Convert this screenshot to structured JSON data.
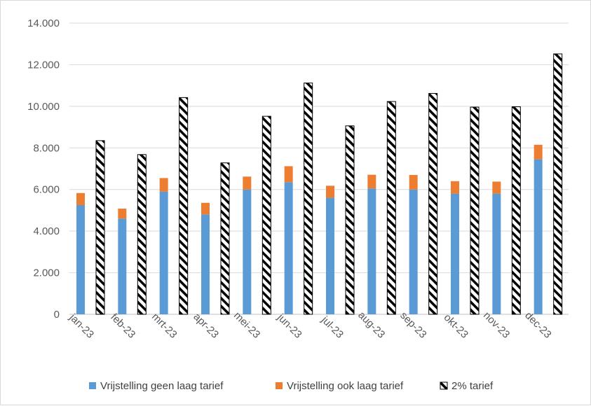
{
  "chart_data": {
    "type": "bar",
    "categories": [
      "jan-23",
      "feb-23",
      "mrt-23",
      "apr-23",
      "mei-23",
      "jun-23",
      "jul-23",
      "aug-23",
      "sep-23",
      "okt-23",
      "nov-23",
      "dec-23"
    ],
    "series": [
      {
        "name": "Vrijstelling geen laag tarief",
        "stack": "a",
        "color": "#5b9bd5",
        "values": [
          5250,
          4600,
          5900,
          4800,
          6000,
          6350,
          5600,
          6050,
          6000,
          5800,
          5800,
          7450
        ]
      },
      {
        "name": "Vrijstelling ook laag tarief",
        "stack": "a",
        "color": "#ed7d31",
        "values": [
          580,
          480,
          650,
          560,
          620,
          770,
          580,
          660,
          700,
          600,
          580,
          700
        ]
      },
      {
        "name": "2% tarief",
        "stack": "b",
        "pattern": "hatch",
        "values": [
          8350,
          7680,
          10420,
          7280,
          9520,
          11120,
          9060,
          10230,
          10620,
          9960,
          9980,
          12520
        ]
      }
    ],
    "ylim": [
      0,
      14000
    ],
    "yticks": [
      "0",
      "2.000",
      "4.000",
      "6.000",
      "8.000",
      "10.000",
      "12.000",
      "14.000"
    ],
    "grid": true,
    "legend": "bottom"
  }
}
